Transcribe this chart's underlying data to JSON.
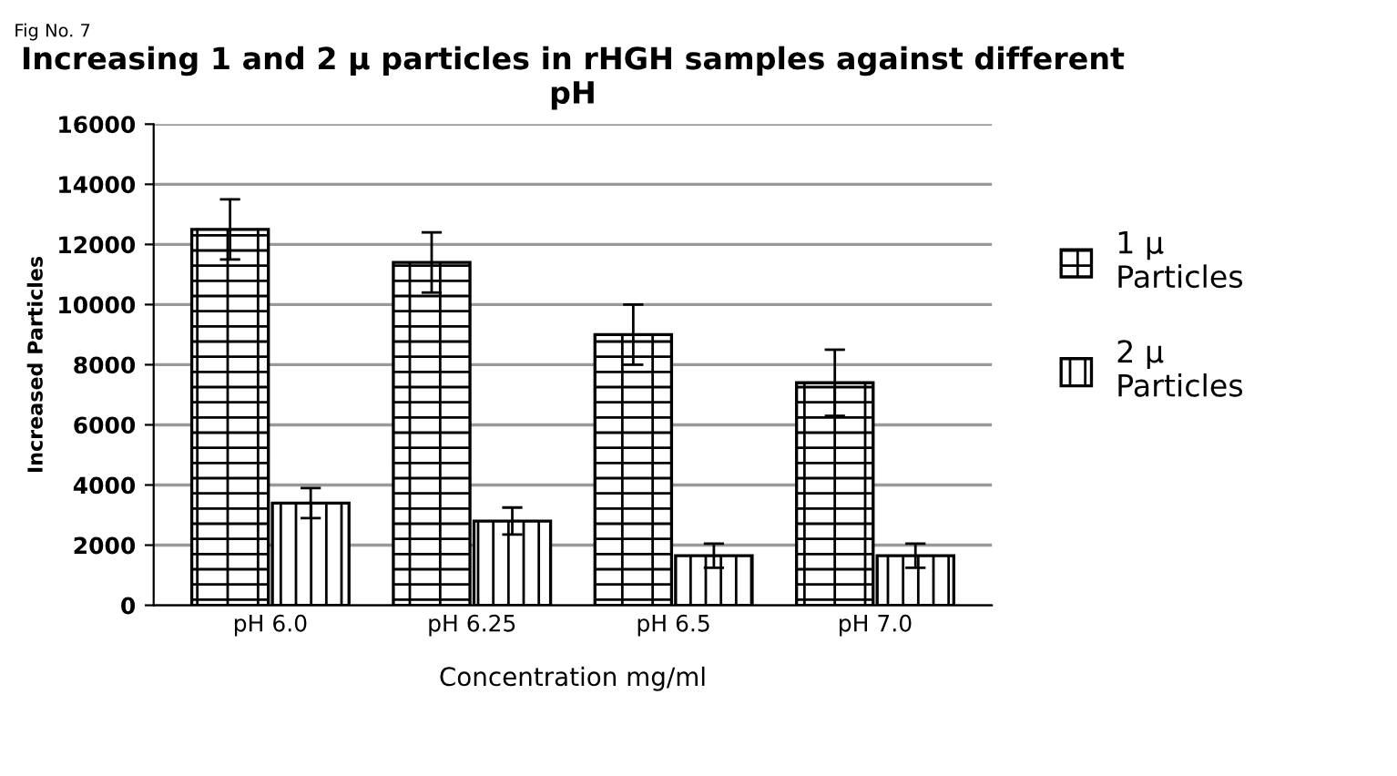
{
  "chart_data": {
    "type": "bar",
    "title": "Increasing 1 and 2 µ particles in rHGH samples against different pH",
    "xlabel": "Concentration mg/ml",
    "ylabel": "Increased Particles",
    "annotations": [
      "Fig No. 7"
    ],
    "categories": [
      "pH 6.0",
      "pH 6.25",
      "pH 6.5",
      "pH 7.0"
    ],
    "series": [
      {
        "name": "1 µ Particles",
        "color": "#000000",
        "values": [
          12500,
          11400,
          9000,
          7400
        ],
        "errors": [
          1000,
          1000,
          1000,
          1100
        ]
      },
      {
        "name": "2 µ Particles",
        "color": "#000000",
        "values": [
          3400,
          2800,
          1650,
          1650
        ],
        "errors": [
          500,
          450,
          400,
          400
        ]
      }
    ],
    "ylim": [
      0,
      16000
    ],
    "yticks": [
      0,
      2000,
      4000,
      6000,
      8000,
      10000,
      12000,
      14000,
      16000
    ],
    "grid": "y",
    "legend": "right"
  }
}
